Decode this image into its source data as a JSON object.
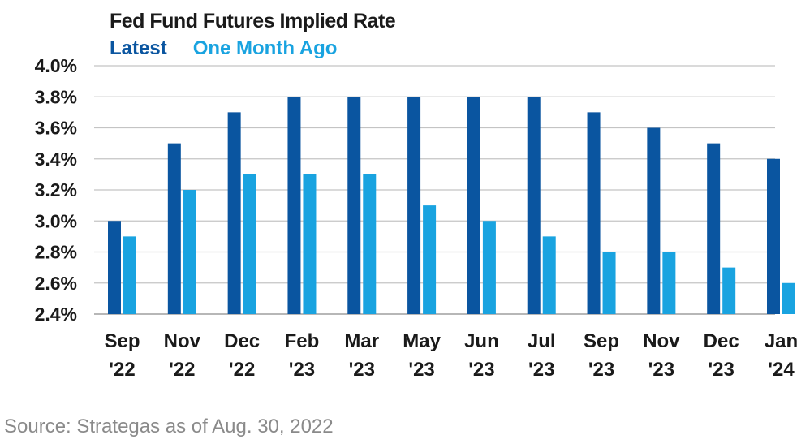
{
  "chart_data": {
    "type": "bar",
    "title": "Fed Fund Futures Implied Rate",
    "categories": [
      [
        "Sep",
        "'22"
      ],
      [
        "Nov",
        "'22"
      ],
      [
        "Dec",
        "'22"
      ],
      [
        "Feb",
        "'23"
      ],
      [
        "Mar",
        "'23"
      ],
      [
        "May",
        "'23"
      ],
      [
        "Jun",
        "'23"
      ],
      [
        "Jul",
        "'23"
      ],
      [
        "Sep",
        "'23"
      ],
      [
        "Nov",
        "'23"
      ],
      [
        "Dec",
        "'23"
      ],
      [
        "Jan",
        "'24"
      ]
    ],
    "series": [
      {
        "name": "Latest",
        "color": "#0a55a0",
        "values": [
          3.0,
          3.5,
          3.7,
          3.8,
          3.8,
          3.8,
          3.8,
          3.8,
          3.7,
          3.6,
          3.5,
          3.4
        ]
      },
      {
        "name": "One Month Ago",
        "color": "#19a3e0",
        "values": [
          2.9,
          3.2,
          3.3,
          3.3,
          3.3,
          3.1,
          3.0,
          2.9,
          2.8,
          2.8,
          2.7,
          2.6
        ]
      }
    ],
    "ylim": [
      2.4,
      4.0
    ],
    "yticks": [
      "4.0%",
      "3.8%",
      "3.6%",
      "3.4%",
      "3.2%",
      "3.0%",
      "2.8%",
      "2.6%",
      "2.4%"
    ],
    "ytick_values": [
      4.0,
      3.8,
      3.6,
      3.4,
      3.2,
      3.0,
      2.8,
      2.6,
      2.4
    ],
    "grid": true,
    "legend_position": "top-left",
    "xlabel": "",
    "ylabel": ""
  },
  "source": "Source: Strategas as of Aug. 30, 2022"
}
